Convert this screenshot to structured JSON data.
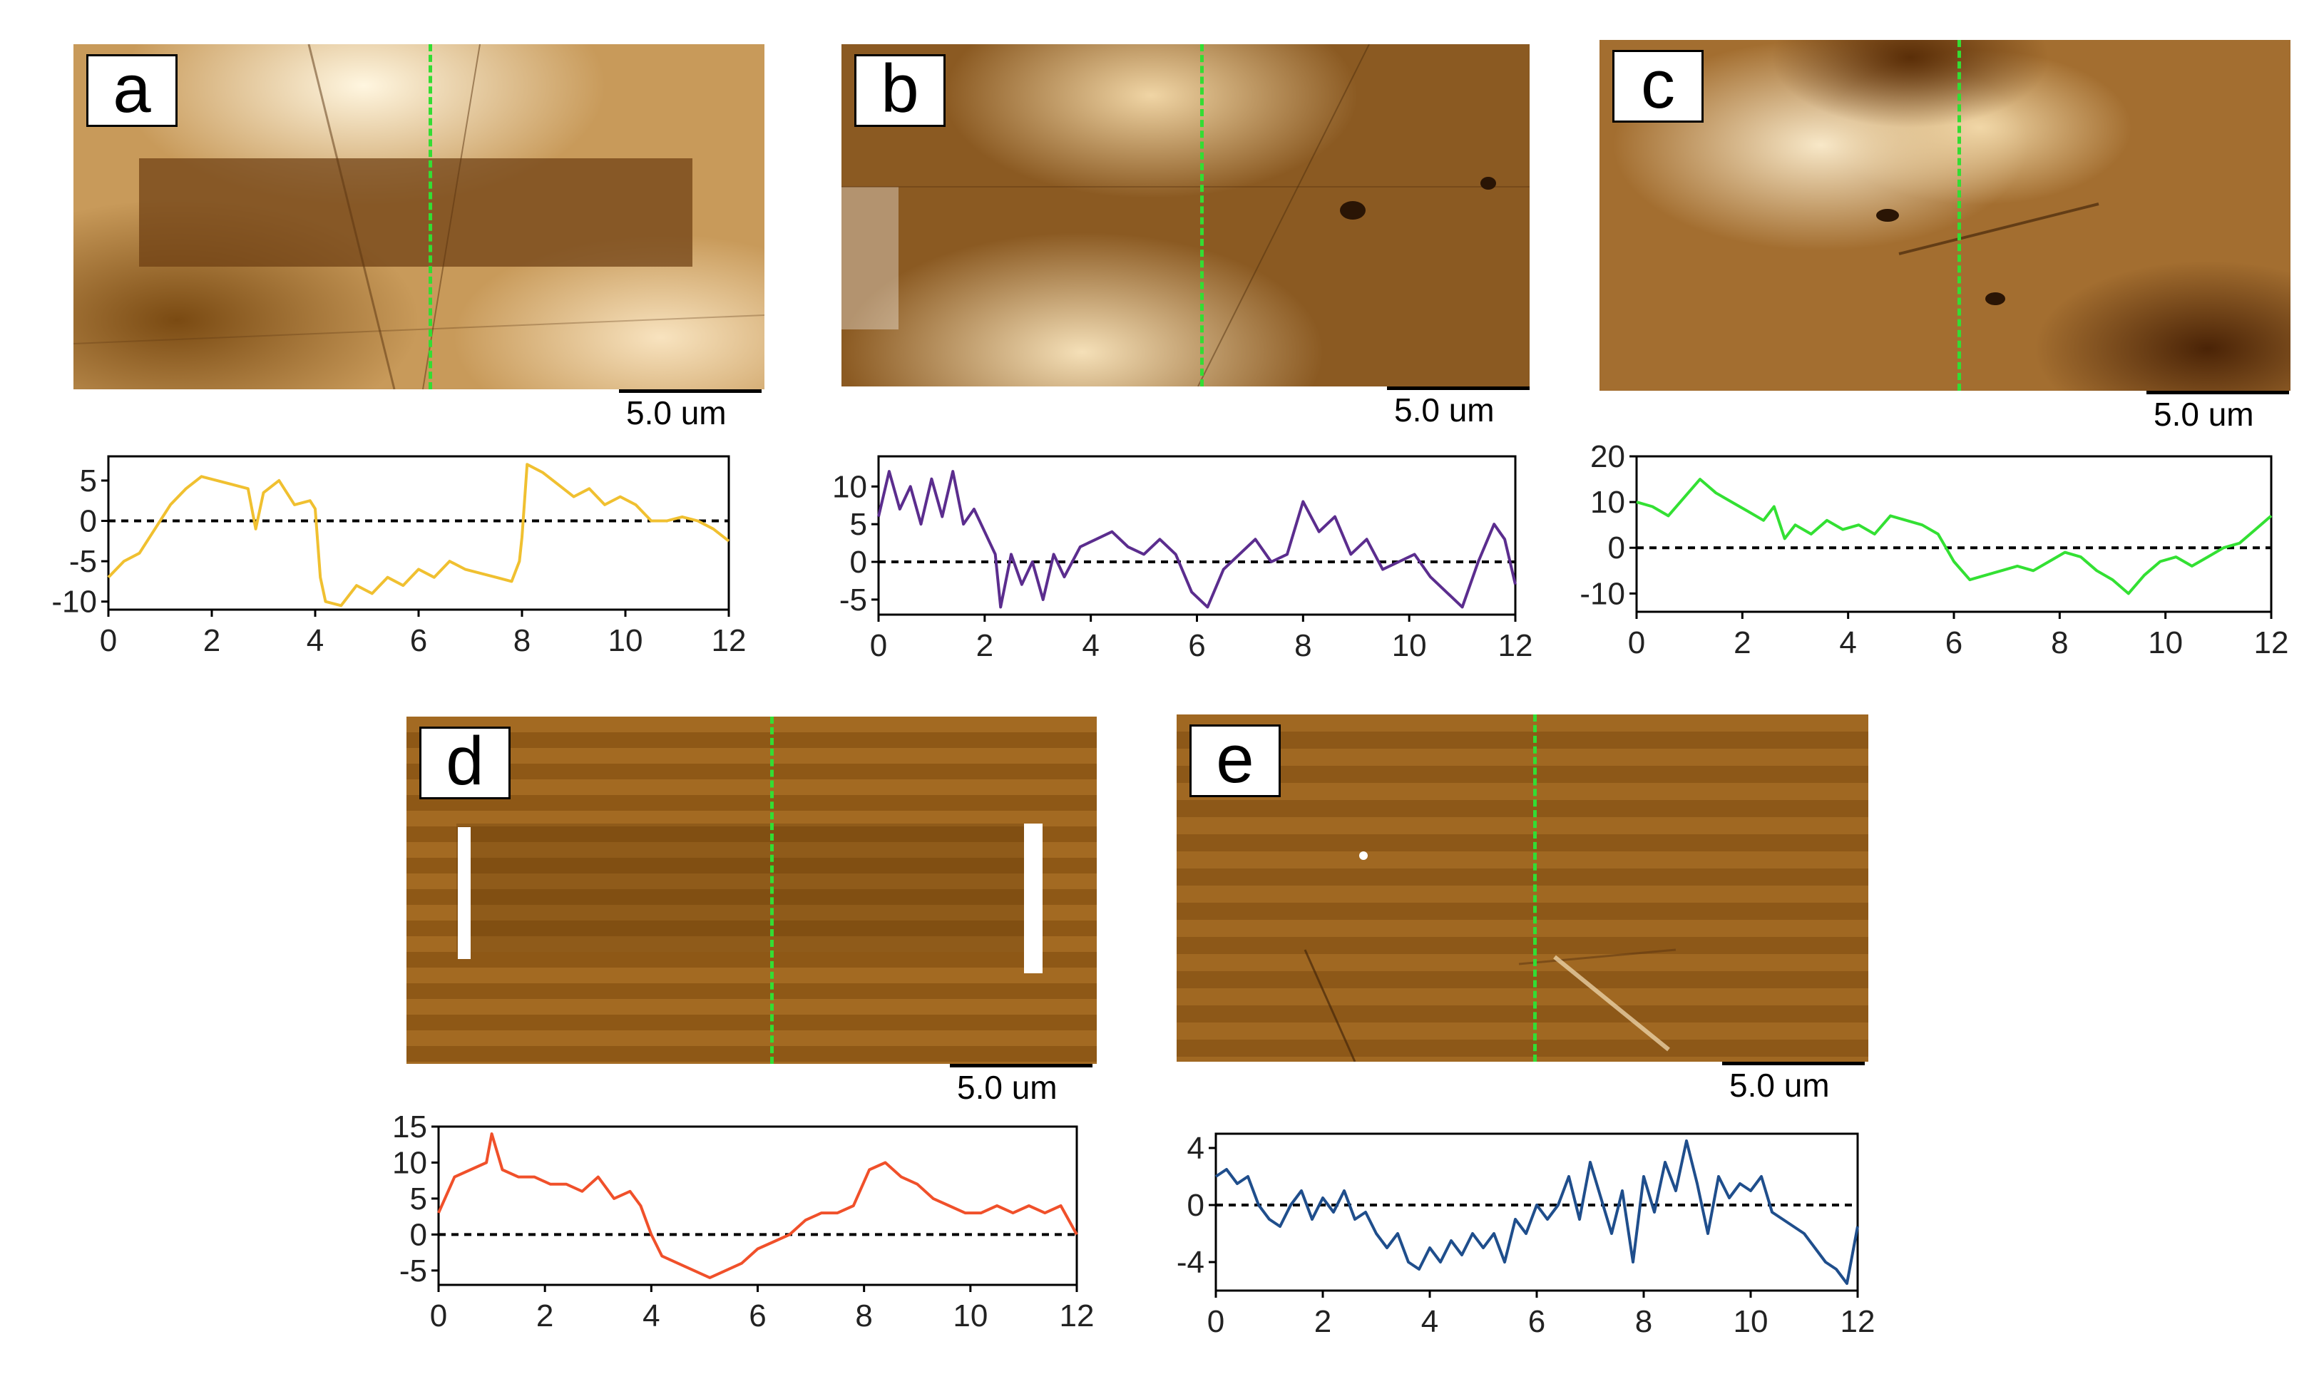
{
  "figure": {
    "scale_label": "5.0 um",
    "colors": {
      "guide_line": "#33dd33",
      "baseline": "#000000"
    },
    "panels": [
      {
        "id": "a",
        "letter": "a",
        "line_color": "#f0c030"
      },
      {
        "id": "b",
        "letter": "b",
        "line_color": "#5b2d8e"
      },
      {
        "id": "c",
        "letter": "c",
        "line_color": "#33e033"
      },
      {
        "id": "d",
        "letter": "d",
        "line_color": "#f0502a"
      },
      {
        "id": "e",
        "letter": "e",
        "line_color": "#1f4e8c"
      }
    ]
  },
  "chart_data": [
    {
      "type": "line",
      "panel": "a",
      "title": "",
      "xlabel": "",
      "ylabel": "",
      "xlim": [
        0,
        12
      ],
      "ylim": [
        -11,
        8
      ],
      "xticks": [
        "0",
        "2",
        "4",
        "6",
        "8",
        "10",
        "12"
      ],
      "yticks": [
        "5",
        "0",
        "-5",
        "-10"
      ],
      "series": [
        {
          "name": "a",
          "color": "#f0c030",
          "x": [
            0,
            0.3,
            0.6,
            0.9,
            1.2,
            1.5,
            1.8,
            2.1,
            2.4,
            2.7,
            2.85,
            3.0,
            3.3,
            3.6,
            3.9,
            4.0,
            4.1,
            4.2,
            4.5,
            4.8,
            5.1,
            5.4,
            5.7,
            6.0,
            6.3,
            6.6,
            6.9,
            7.2,
            7.5,
            7.8,
            7.95,
            8.0,
            8.1,
            8.4,
            8.7,
            9.0,
            9.3,
            9.6,
            9.9,
            10.2,
            10.5,
            10.8,
            11.1,
            11.4,
            11.7,
            12
          ],
          "y": [
            -7,
            -5,
            -4,
            -1,
            2,
            4,
            5.5,
            5,
            4.5,
            4,
            -1,
            3.5,
            5,
            2,
            2.5,
            1.5,
            -7,
            -10,
            -10.5,
            -8,
            -9,
            -7,
            -8,
            -6,
            -7,
            -5,
            -6,
            -6.5,
            -7,
            -7.5,
            -5,
            -2,
            7,
            6,
            4.5,
            3,
            4,
            2,
            3,
            2,
            0,
            0,
            0.5,
            0,
            -1,
            -2.5
          ]
        }
      ]
    },
    {
      "type": "line",
      "panel": "b",
      "title": "",
      "xlabel": "",
      "ylabel": "",
      "xlim": [
        0,
        12
      ],
      "ylim": [
        -7,
        14
      ],
      "xticks": [
        "0",
        "2",
        "4",
        "6",
        "8",
        "10",
        "12"
      ],
      "yticks": [
        "10",
        "5",
        "0",
        "-5"
      ],
      "series": [
        {
          "name": "b",
          "color": "#5b2d8e",
          "x": [
            0,
            0.2,
            0.4,
            0.6,
            0.8,
            1.0,
            1.2,
            1.4,
            1.6,
            1.8,
            2.0,
            2.2,
            2.3,
            2.5,
            2.7,
            2.9,
            3.1,
            3.3,
            3.5,
            3.8,
            4.1,
            4.4,
            4.7,
            5.0,
            5.3,
            5.6,
            5.9,
            6.2,
            6.5,
            6.8,
            7.1,
            7.4,
            7.7,
            8.0,
            8.3,
            8.6,
            8.9,
            9.2,
            9.5,
            9.8,
            10.1,
            10.4,
            10.7,
            11.0,
            11.3,
            11.6,
            11.8,
            12
          ],
          "y": [
            6,
            12,
            7,
            10,
            5,
            11,
            6,
            12,
            5,
            7,
            4,
            1,
            -6,
            1,
            -3,
            0,
            -5,
            1,
            -2,
            2,
            3,
            4,
            2,
            1,
            3,
            1,
            -4,
            -6,
            -1,
            1,
            3,
            0,
            1,
            8,
            4,
            6,
            1,
            3,
            -1,
            0,
            1,
            -2,
            -4,
            -6,
            0,
            5,
            3,
            -3
          ]
        }
      ]
    },
    {
      "type": "line",
      "panel": "c",
      "title": "",
      "xlabel": "",
      "ylabel": "",
      "xlim": [
        0,
        12
      ],
      "ylim": [
        -14,
        20
      ],
      "xticks": [
        "0",
        "2",
        "4",
        "6",
        "8",
        "10",
        "12"
      ],
      "yticks": [
        "20",
        "10",
        "0",
        "-10"
      ],
      "series": [
        {
          "name": "c",
          "color": "#33e033",
          "x": [
            0,
            0.3,
            0.6,
            0.9,
            1.2,
            1.5,
            1.8,
            2.1,
            2.4,
            2.6,
            2.8,
            3.0,
            3.3,
            3.6,
            3.9,
            4.2,
            4.5,
            4.8,
            5.1,
            5.4,
            5.7,
            6.0,
            6.3,
            6.6,
            6.9,
            7.2,
            7.5,
            7.8,
            8.1,
            8.4,
            8.7,
            9.0,
            9.3,
            9.6,
            9.9,
            10.2,
            10.5,
            10.8,
            11.1,
            11.4,
            11.7,
            12
          ],
          "y": [
            10,
            9,
            7,
            11,
            15,
            12,
            10,
            8,
            6,
            9,
            2,
            5,
            3,
            6,
            4,
            5,
            3,
            7,
            6,
            5,
            3,
            -3,
            -7,
            -6,
            -5,
            -4,
            -5,
            -3,
            -1,
            -2,
            -5,
            -7,
            -10,
            -6,
            -3,
            -2,
            -4,
            -2,
            0,
            1,
            4,
            7
          ]
        }
      ]
    },
    {
      "type": "line",
      "panel": "d",
      "title": "",
      "xlabel": "",
      "ylabel": "",
      "xlim": [
        0,
        12
      ],
      "ylim": [
        -7,
        15
      ],
      "xticks": [
        "0",
        "2",
        "4",
        "6",
        "8",
        "10",
        "12"
      ],
      "yticks": [
        "15",
        "10",
        "5",
        "0",
        "-5"
      ],
      "series": [
        {
          "name": "d",
          "color": "#f0502a",
          "x": [
            0,
            0.3,
            0.6,
            0.9,
            1.0,
            1.2,
            1.5,
            1.8,
            2.1,
            2.4,
            2.7,
            3.0,
            3.3,
            3.6,
            3.8,
            4.0,
            4.2,
            4.5,
            4.8,
            5.1,
            5.4,
            5.7,
            6.0,
            6.3,
            6.6,
            6.9,
            7.2,
            7.5,
            7.8,
            8.1,
            8.4,
            8.7,
            9.0,
            9.3,
            9.6,
            9.9,
            10.2,
            10.5,
            10.8,
            11.1,
            11.4,
            11.7,
            12
          ],
          "y": [
            3,
            8,
            9,
            10,
            14,
            9,
            8,
            8,
            7,
            7,
            6,
            8,
            5,
            6,
            4,
            0,
            -3,
            -4,
            -5,
            -6,
            -5,
            -4,
            -2,
            -1,
            0,
            2,
            3,
            3,
            4,
            9,
            10,
            8,
            7,
            5,
            4,
            3,
            3,
            4,
            3,
            4,
            3,
            4,
            0
          ]
        }
      ]
    },
    {
      "type": "line",
      "panel": "e",
      "title": "",
      "xlabel": "",
      "ylabel": "",
      "xlim": [
        0,
        12
      ],
      "ylim": [
        -6,
        5
      ],
      "xticks": [
        "0",
        "2",
        "4",
        "6",
        "8",
        "10",
        "12"
      ],
      "yticks": [
        "4",
        "0",
        "-4"
      ],
      "series": [
        {
          "name": "e",
          "color": "#1f4e8c",
          "x": [
            0,
            0.2,
            0.4,
            0.6,
            0.8,
            1.0,
            1.2,
            1.4,
            1.6,
            1.8,
            2.0,
            2.2,
            2.4,
            2.6,
            2.8,
            3.0,
            3.2,
            3.4,
            3.6,
            3.8,
            4.0,
            4.2,
            4.4,
            4.6,
            4.8,
            5.0,
            5.2,
            5.4,
            5.6,
            5.8,
            6.0,
            6.2,
            6.4,
            6.6,
            6.8,
            7.0,
            7.2,
            7.4,
            7.6,
            7.8,
            8.0,
            8.2,
            8.4,
            8.6,
            8.8,
            9.0,
            9.2,
            9.4,
            9.6,
            9.8,
            10.0,
            10.2,
            10.4,
            10.6,
            10.8,
            11.0,
            11.2,
            11.4,
            11.6,
            11.8,
            12
          ],
          "y": [
            2,
            2.5,
            1.5,
            2,
            0,
            -1,
            -1.5,
            0,
            1,
            -1,
            0.5,
            -0.5,
            1,
            -1,
            -0.5,
            -2,
            -3,
            -2,
            -4,
            -4.5,
            -3,
            -4,
            -2.5,
            -3.5,
            -2,
            -3,
            -2,
            -4,
            -1,
            -2,
            0,
            -1,
            0,
            2,
            -1,
            3,
            0.5,
            -2,
            1,
            -4,
            2,
            -0.5,
            3,
            1,
            4.5,
            1.5,
            -2,
            2,
            0.5,
            1.5,
            1,
            2,
            -0.5,
            -1,
            -1.5,
            -2,
            -3,
            -4,
            -4.5,
            -5.5,
            -1.5
          ]
        }
      ]
    }
  ]
}
